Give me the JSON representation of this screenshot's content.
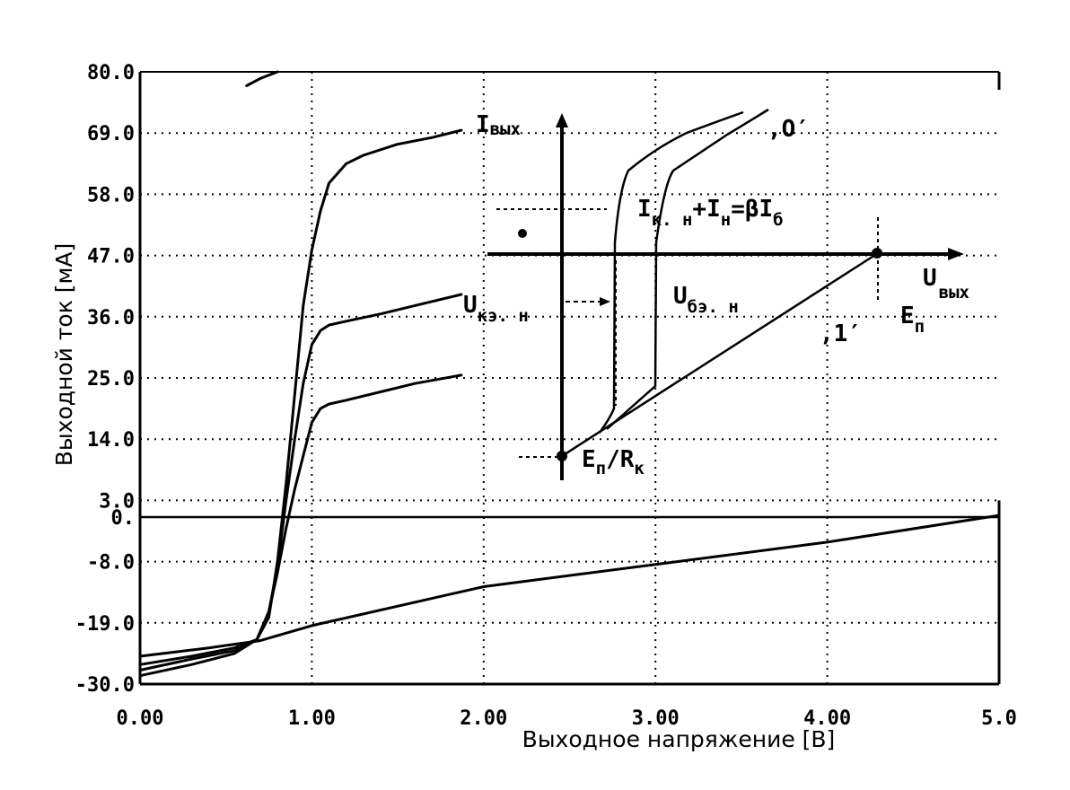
{
  "chart_data": {
    "type": "line",
    "xlabel": "Выходное напряжение [В]",
    "ylabel": "Выходной ток [мА]",
    "xlim": [
      0,
      5
    ],
    "ylim": [
      -30,
      80
    ],
    "grid": true,
    "x_ticks": [
      {
        "value": 0,
        "label": "0.00"
      },
      {
        "value": 1,
        "label": "1.00"
      },
      {
        "value": 2,
        "label": "2.00"
      },
      {
        "value": 3,
        "label": "3.00"
      },
      {
        "value": 4,
        "label": "4.00"
      },
      {
        "value": 5,
        "label": "5.0"
      }
    ],
    "y_ticks": [
      {
        "value": 80,
        "label": "80.0"
      },
      {
        "value": 69,
        "label": "69.0"
      },
      {
        "value": 58,
        "label": "58.0"
      },
      {
        "value": 47,
        "label": "47.0"
      },
      {
        "value": 36,
        "label": "36.0"
      },
      {
        "value": 25,
        "label": "25.0"
      },
      {
        "value": 14,
        "label": "14.0"
      },
      {
        "value": 3,
        "label": "3.0"
      },
      {
        "value": 0,
        "label": "0."
      },
      {
        "value": -8,
        "label": "-8.0"
      },
      {
        "value": -19,
        "label": "-19.0"
      },
      {
        "value": -30,
        "label": "-30.0"
      }
    ],
    "series": [
      {
        "points": [
          [
            0,
            -26.5
          ],
          [
            0.3,
            -25
          ],
          [
            0.55,
            -23.5
          ],
          [
            0.68,
            -22
          ],
          [
            0.75,
            -18
          ],
          [
            0.8,
            -8
          ],
          [
            0.85,
            6
          ],
          [
            0.9,
            22
          ],
          [
            0.95,
            38
          ],
          [
            1.0,
            48
          ],
          [
            1.05,
            55
          ],
          [
            1.1,
            60
          ],
          [
            1.2,
            63.5
          ],
          [
            1.3,
            65
          ],
          [
            1.5,
            67
          ],
          [
            1.7,
            68.2
          ],
          [
            1.87,
            69.5
          ]
        ]
      },
      {
        "points": [
          [
            0,
            -28.5
          ],
          [
            0.3,
            -26.5
          ],
          [
            0.55,
            -24.5
          ],
          [
            0.68,
            -22
          ],
          [
            0.75,
            -17
          ],
          [
            0.8,
            -9
          ],
          [
            0.85,
            3
          ],
          [
            0.9,
            14
          ],
          [
            0.95,
            24
          ],
          [
            1.0,
            31
          ],
          [
            1.05,
            33.5
          ],
          [
            1.1,
            34.5
          ],
          [
            1.2,
            35.2
          ],
          [
            1.4,
            36.5
          ],
          [
            1.6,
            38
          ],
          [
            1.87,
            40
          ]
        ]
      },
      {
        "points": [
          [
            0,
            -27.5
          ],
          [
            0.3,
            -25.5
          ],
          [
            0.55,
            -24
          ],
          [
            0.68,
            -22
          ],
          [
            0.75,
            -17
          ],
          [
            0.8,
            -10
          ],
          [
            0.85,
            -2
          ],
          [
            0.9,
            5
          ],
          [
            0.95,
            11
          ],
          [
            1.0,
            17
          ],
          [
            1.05,
            19.5
          ],
          [
            1.1,
            20.3
          ],
          [
            1.2,
            21
          ],
          [
            1.4,
            22.5
          ],
          [
            1.6,
            24
          ],
          [
            1.87,
            25.5
          ]
        ]
      },
      {
        "points": [
          [
            0,
            -25
          ],
          [
            0.4,
            -23.5
          ],
          [
            0.7,
            -22.2
          ],
          [
            1.0,
            -19.5
          ],
          [
            2.0,
            -12.5
          ],
          [
            3.0,
            -8.5
          ],
          [
            4.0,
            -4.5
          ],
          [
            5.0,
            0.3
          ]
        ]
      },
      {
        "points": [
          [
            0.62,
            77.5
          ],
          [
            0.7,
            78.8
          ],
          [
            0.8,
            80
          ]
        ]
      }
    ]
  },
  "inset": {
    "i_out": "I",
    "i_out_sub": "вых",
    "u_out": "U",
    "u_out_sub": "вых",
    "ep": "E",
    "ep_sub": "п",
    "label_zero": "‚О′",
    "label_one": "‚1′",
    "ukn": "U",
    "ukn_sub": "кэ. н",
    "ubn": "U",
    "ubn_sub": "бэ. н",
    "eq_i1": "I",
    "eq_i1_sub": "к. н",
    "eq_plus": "+",
    "eq_i2": "I",
    "eq_i2_sub": "н",
    "eq_mid": "=βI",
    "eq_b_sub": "б",
    "epr_e": "E",
    "epr_e_sub": "п",
    "epr_slash": "/",
    "epr_r": "R",
    "epr_r_sub": "к"
  }
}
